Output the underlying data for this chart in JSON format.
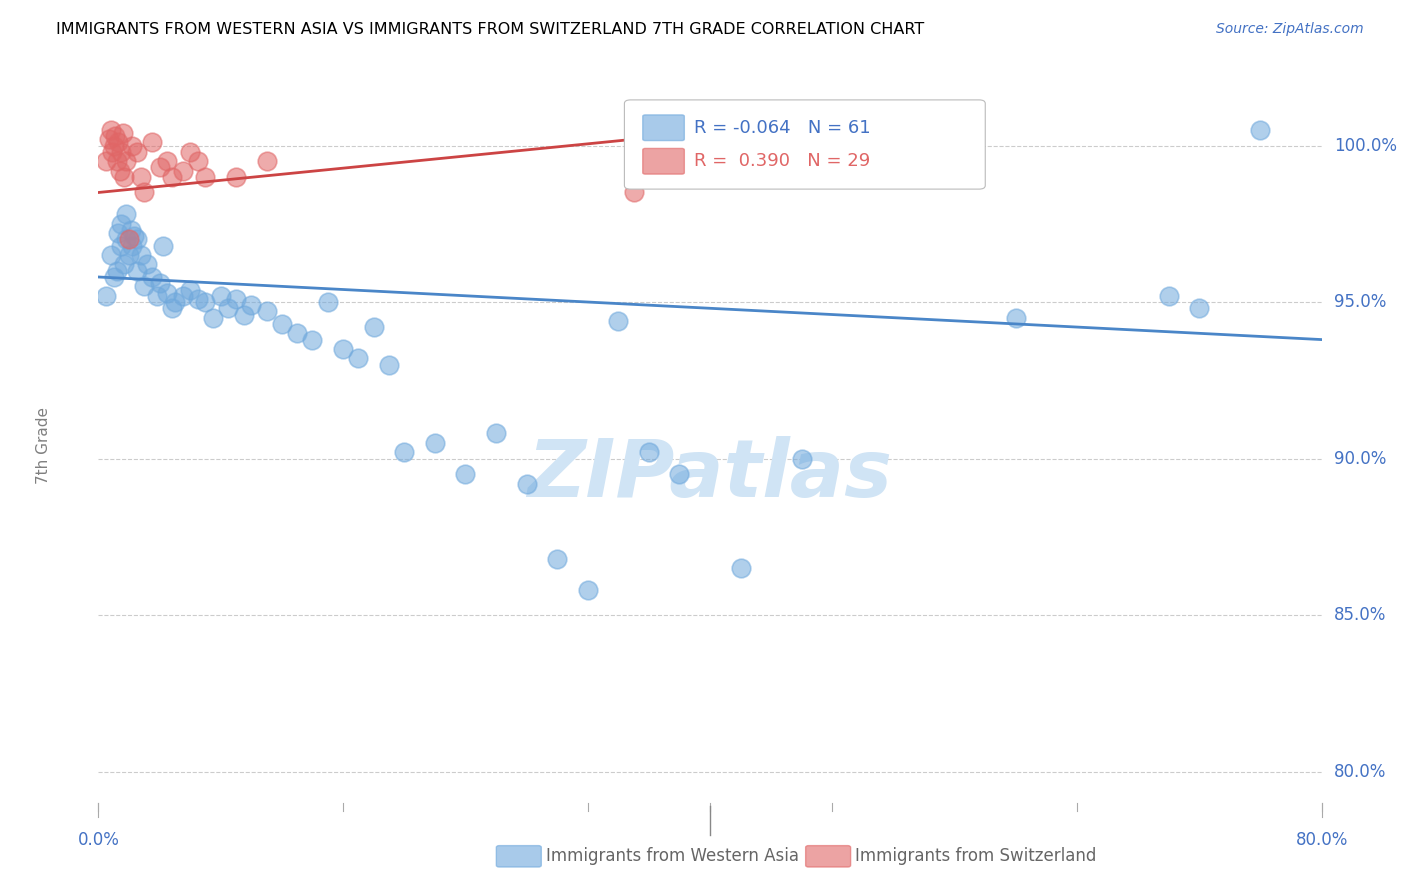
{
  "title": "IMMIGRANTS FROM WESTERN ASIA VS IMMIGRANTS FROM SWITZERLAND 7TH GRADE CORRELATION CHART",
  "source": "Source: ZipAtlas.com",
  "ylabel": "7th Grade",
  "y_ticks": [
    80.0,
    85.0,
    90.0,
    95.0,
    100.0
  ],
  "y_tick_labels": [
    "80.0%",
    "85.0%",
    "90.0%",
    "95.0%",
    "100.0%"
  ],
  "xlim": [
    0.0,
    0.8
  ],
  "ylim": [
    79.0,
    101.8
  ],
  "legend1_R": "-0.064",
  "legend1_N": "61",
  "legend2_R": "0.390",
  "legend2_N": "29",
  "blue_color": "#6fa8dc",
  "pink_color": "#e06666",
  "blue_line_color": "#4a86c8",
  "pink_line_color": "#cc4444",
  "axis_label_color": "#4472c4",
  "watermark": "ZIPatlas",
  "watermark_color": "#d0e4f5",
  "blue_scatter_x": [
    0.005,
    0.008,
    0.01,
    0.012,
    0.013,
    0.015,
    0.015,
    0.017,
    0.018,
    0.018,
    0.02,
    0.021,
    0.022,
    0.023,
    0.025,
    0.025,
    0.028,
    0.03,
    0.032,
    0.035,
    0.038,
    0.04,
    0.042,
    0.045,
    0.048,
    0.05,
    0.055,
    0.06,
    0.065,
    0.07,
    0.075,
    0.08,
    0.085,
    0.09,
    0.095,
    0.1,
    0.11,
    0.12,
    0.13,
    0.14,
    0.15,
    0.16,
    0.17,
    0.18,
    0.19,
    0.2,
    0.22,
    0.24,
    0.26,
    0.28,
    0.3,
    0.32,
    0.34,
    0.36,
    0.38,
    0.42,
    0.46,
    0.6,
    0.7,
    0.72,
    0.76
  ],
  "blue_scatter_y": [
    95.2,
    96.5,
    95.8,
    96.0,
    97.2,
    96.8,
    97.5,
    96.2,
    97.0,
    97.8,
    96.5,
    97.3,
    96.8,
    97.1,
    97.0,
    96.0,
    96.5,
    95.5,
    96.2,
    95.8,
    95.2,
    95.6,
    96.8,
    95.3,
    94.8,
    95.0,
    95.2,
    95.4,
    95.1,
    95.0,
    94.5,
    95.2,
    94.8,
    95.1,
    94.6,
    94.9,
    94.7,
    94.3,
    94.0,
    93.8,
    95.0,
    93.5,
    93.2,
    94.2,
    93.0,
    90.2,
    90.5,
    89.5,
    90.8,
    89.2,
    86.8,
    85.8,
    94.4,
    90.2,
    89.5,
    86.5,
    90.0,
    94.5,
    95.2,
    94.8,
    100.5
  ],
  "pink_scatter_x": [
    0.005,
    0.007,
    0.008,
    0.009,
    0.01,
    0.011,
    0.012,
    0.013,
    0.014,
    0.015,
    0.016,
    0.017,
    0.018,
    0.02,
    0.022,
    0.025,
    0.028,
    0.03,
    0.035,
    0.04,
    0.045,
    0.048,
    0.055,
    0.06,
    0.065,
    0.07,
    0.09,
    0.11,
    0.35
  ],
  "pink_scatter_y": [
    99.5,
    100.2,
    100.5,
    99.8,
    100.0,
    100.3,
    99.5,
    100.1,
    99.2,
    99.8,
    100.4,
    99.0,
    99.5,
    97.0,
    100.0,
    99.8,
    99.0,
    98.5,
    100.1,
    99.3,
    99.5,
    99.0,
    99.2,
    99.8,
    99.5,
    99.0,
    99.0,
    99.5,
    98.5
  ],
  "blue_trendline_x": [
    0.0,
    0.8
  ],
  "blue_trendline_y": [
    95.8,
    93.8
  ],
  "pink_trendline_x": [
    0.0,
    0.35
  ],
  "pink_trendline_y": [
    98.5,
    100.2
  ],
  "legend_label_blue": "Immigrants from Western Asia",
  "legend_label_pink": "Immigrants from Switzerland"
}
